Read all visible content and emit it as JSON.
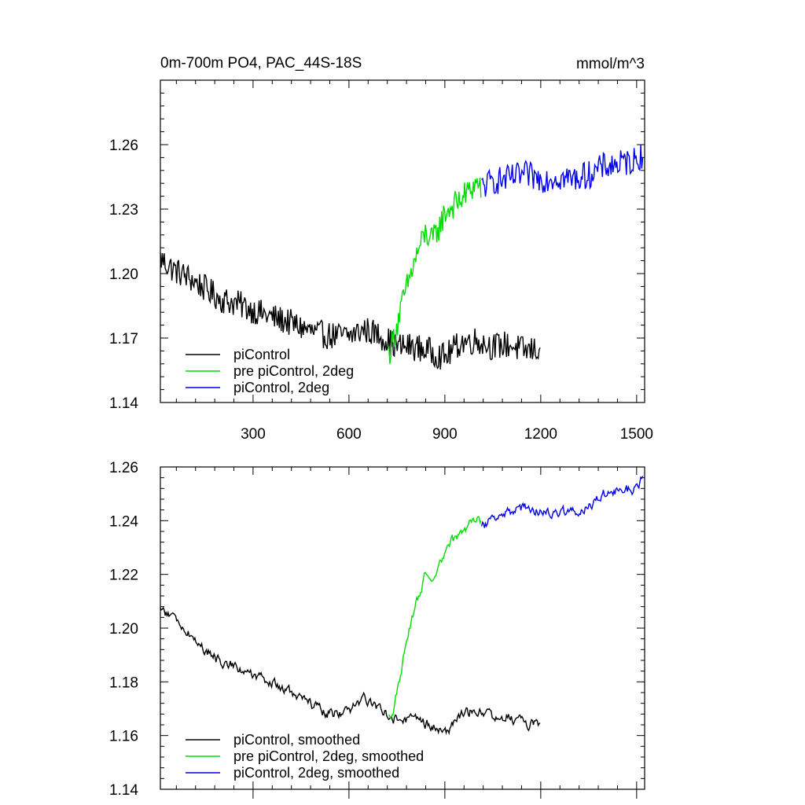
{
  "header": {
    "title": "0m-700m PO4, PAC_44S-18S",
    "units": "mmol/m^3"
  },
  "chart_data": [
    {
      "type": "line",
      "panel": "top",
      "xlim": [
        10,
        1525
      ],
      "ylim": [
        1.14,
        1.29
      ],
      "x_ticks": [
        300,
        600,
        900,
        1200,
        1500
      ],
      "y_ticks": [
        1.14,
        1.17,
        1.2,
        1.23,
        1.26
      ],
      "y_tick_labels": [
        "1.14",
        "1.17",
        "1.20",
        "1.23",
        "1.26"
      ],
      "x_tick_labels": [
        "300",
        "600",
        "900",
        "1200",
        "1500"
      ],
      "legend_position": "bottom-left",
      "series": [
        {
          "name": "piControl",
          "color": "#000000",
          "x": [
            10,
            50,
            100,
            150,
            200,
            250,
            300,
            350,
            400,
            450,
            500,
            550,
            600,
            650,
            700,
            750,
            800,
            850,
            900,
            950,
            1000,
            1050,
            1100,
            1150,
            1200
          ],
          "y": [
            1.207,
            1.202,
            1.198,
            1.193,
            1.188,
            1.186,
            1.183,
            1.18,
            1.178,
            1.175,
            1.172,
            1.171,
            1.171,
            1.174,
            1.171,
            1.166,
            1.166,
            1.164,
            1.161,
            1.168,
            1.169,
            1.166,
            1.167,
            1.164,
            1.165
          ]
        },
        {
          "name": "pre piControl, 2deg",
          "color": "#00dd00",
          "x": [
            725,
            740,
            760,
            780,
            800,
            820,
            840,
            860,
            880,
            900,
            920,
            940,
            960,
            980,
            1000,
            1015
          ],
          "y": [
            1.163,
            1.17,
            1.182,
            1.193,
            1.203,
            1.212,
            1.219,
            1.215,
            1.221,
            1.228,
            1.231,
            1.233,
            1.236,
            1.239,
            1.242,
            1.24
          ]
        },
        {
          "name": "piControl, 2deg",
          "color": "#0000ee",
          "x": [
            1015,
            1050,
            1100,
            1150,
            1200,
            1250,
            1300,
            1350,
            1400,
            1450,
            1500,
            1520
          ],
          "y": [
            1.24,
            1.243,
            1.244,
            1.246,
            1.244,
            1.245,
            1.244,
            1.246,
            1.25,
            1.251,
            1.253,
            1.256
          ]
        }
      ]
    },
    {
      "type": "line",
      "panel": "bottom",
      "xlim": [
        10,
        1525
      ],
      "ylim": [
        1.14,
        1.26
      ],
      "x_ticks": [
        300,
        600,
        900,
        1200,
        1500
      ],
      "y_ticks": [
        1.14,
        1.16,
        1.18,
        1.2,
        1.22,
        1.24,
        1.26
      ],
      "y_tick_labels": [
        "1.14",
        "1.16",
        "1.18",
        "1.20",
        "1.22",
        "1.24",
        "1.26"
      ],
      "legend_position": "bottom-left",
      "series": [
        {
          "name": "piControl, smoothed",
          "color": "#000000",
          "x": [
            10,
            50,
            100,
            150,
            200,
            250,
            300,
            350,
            400,
            450,
            500,
            550,
            600,
            650,
            700,
            750,
            800,
            850,
            900,
            950,
            1000,
            1050,
            1100,
            1150,
            1200
          ],
          "y": [
            1.207,
            1.204,
            1.198,
            1.192,
            1.187,
            1.186,
            1.182,
            1.18,
            1.177,
            1.174,
            1.17,
            1.168,
            1.169,
            1.174,
            1.17,
            1.166,
            1.166,
            1.164,
            1.161,
            1.167,
            1.17,
            1.167,
            1.167,
            1.164,
            1.165
          ]
        },
        {
          "name": "pre piControl, 2deg, smoothed",
          "color": "#00dd00",
          "x": [
            725,
            740,
            760,
            780,
            800,
            820,
            840,
            860,
            880,
            900,
            920,
            940,
            960,
            980,
            1000,
            1015
          ],
          "y": [
            1.167,
            1.17,
            1.182,
            1.194,
            1.205,
            1.213,
            1.22,
            1.215,
            1.222,
            1.228,
            1.232,
            1.234,
            1.236,
            1.239,
            1.242,
            1.239
          ]
        },
        {
          "name": "piControl, 2deg, smoothed",
          "color": "#0000ee",
          "x": [
            1015,
            1050,
            1100,
            1150,
            1200,
            1250,
            1300,
            1350,
            1400,
            1450,
            1500,
            1520
          ],
          "y": [
            1.237,
            1.242,
            1.243,
            1.245,
            1.243,
            1.244,
            1.243,
            1.245,
            1.25,
            1.251,
            1.252,
            1.256
          ]
        }
      ]
    }
  ]
}
